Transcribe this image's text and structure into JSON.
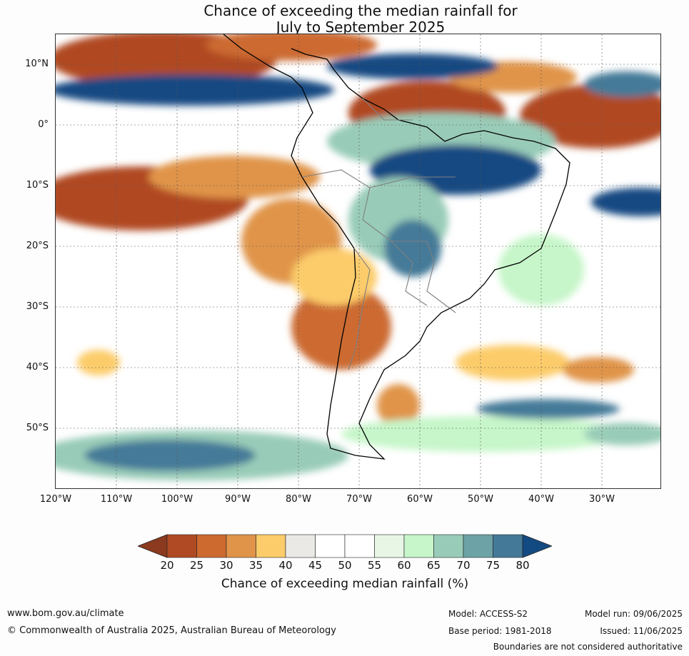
{
  "title": {
    "line1": "Chance of exceeding the median rainfall for",
    "line2": "July to September 2025"
  },
  "map": {
    "lat_labels": [
      "10°N",
      "0°",
      "10°S",
      "20°S",
      "30°S",
      "40°S",
      "50°S"
    ],
    "lon_labels": [
      "120°W",
      "110°W",
      "100°W",
      "90°W",
      "80°W",
      "70°W",
      "60°W",
      "50°W",
      "40°W",
      "30°W"
    ]
  },
  "colorbar": {
    "ticks": [
      "20",
      "25",
      "30",
      "35",
      "40",
      "45",
      "50",
      "55",
      "60",
      "65",
      "70",
      "75",
      "80"
    ],
    "colors": [
      "#8b3a1f",
      "#b04a24",
      "#cc6a30",
      "#e0944a",
      "#fccc6a",
      "#ebe9e5",
      "#ffffff",
      "#ffffff",
      "#e8f6e6",
      "#c6f6c9",
      "#99ccb8",
      "#6da2a6",
      "#447a98",
      "#144a82"
    ],
    "label": "Chance of exceeding median rainfall (%)"
  },
  "footer": {
    "website": "www.bom.gov.au/climate",
    "copyright": "© Commonwealth of Australia 2025, Australian Bureau of Meteorology",
    "model": "Model: ACCESS-S2",
    "base_period": "Base period: 1981-2018",
    "model_run": "Model run: 09/06/2025",
    "issued": "Issued: 11/06/2025",
    "disclaimer": "Boundaries are not considered authoritative"
  }
}
